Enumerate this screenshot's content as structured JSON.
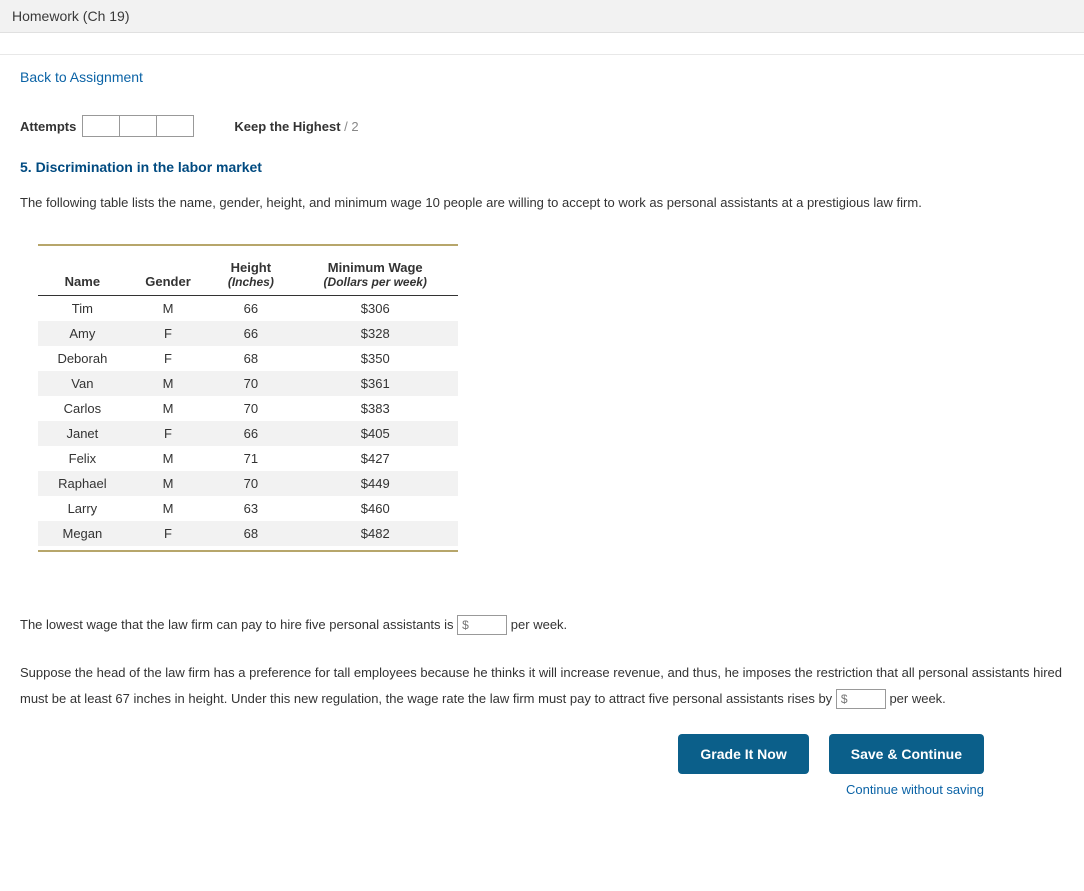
{
  "titlebar": {
    "title": "Homework (Ch 19)"
  },
  "nav": {
    "back_link": "Back to Assignment"
  },
  "attempts": {
    "label": "Attempts",
    "keep_label": "Keep the Highest",
    "slash": "/",
    "keep_value": "2"
  },
  "question": {
    "heading": "5. Discrimination in the labor market",
    "intro": "The following table lists the name, gender, height, and minimum wage 10 people are willing to accept to work as personal assistants at a prestigious law firm."
  },
  "table": {
    "columns": {
      "name": "Name",
      "gender": "Gender",
      "height_main": "Height",
      "height_sub": "(Inches)",
      "wage_main": "Minimum Wage",
      "wage_sub": "(Dollars per week)"
    },
    "rows": [
      {
        "name": "Tim",
        "gender": "M",
        "height": "66",
        "wage": "$306"
      },
      {
        "name": "Amy",
        "gender": "F",
        "height": "66",
        "wage": "$328"
      },
      {
        "name": "Deborah",
        "gender": "F",
        "height": "68",
        "wage": "$350"
      },
      {
        "name": "Van",
        "gender": "M",
        "height": "70",
        "wage": "$361"
      },
      {
        "name": "Carlos",
        "gender": "M",
        "height": "70",
        "wage": "$383"
      },
      {
        "name": "Janet",
        "gender": "F",
        "height": "66",
        "wage": "$405"
      },
      {
        "name": "Felix",
        "gender": "M",
        "height": "71",
        "wage": "$427"
      },
      {
        "name": "Raphael",
        "gender": "M",
        "height": "70",
        "wage": "$449"
      },
      {
        "name": "Larry",
        "gender": "M",
        "height": "63",
        "wage": "$460"
      },
      {
        "name": "Megan",
        "gender": "F",
        "height": "68",
        "wage": "$482"
      }
    ]
  },
  "q1": {
    "pre": "The lowest wage that the law firm can pay to hire five personal assistants is",
    "placeholder": "$",
    "post": "per week."
  },
  "q2": {
    "pre": "Suppose the head of the law firm has a preference for tall employees because he thinks it will increase revenue, and thus, he imposes the restriction that all personal assistants hired must be at least 67 inches in height. Under this new regulation, the wage rate the law firm must pay to attract five personal assistants rises by",
    "placeholder": "$",
    "post": "per week."
  },
  "buttons": {
    "grade": "Grade It Now",
    "save": "Save & Continue",
    "continue_link": "Continue without saving"
  },
  "style": {
    "accent_color": "#004a80",
    "link_color": "#0b63a6",
    "button_bg": "#0b5f8a",
    "gold_rule_color": "#b7a66b",
    "alt_row_bg": "#f2f2f2"
  }
}
